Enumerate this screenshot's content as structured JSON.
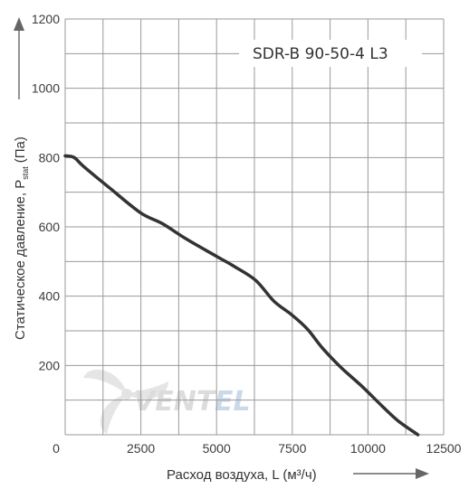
{
  "chart_data": {
    "type": "line",
    "title": "SDR-B 90-50-4 L3",
    "xlabel": "Расход воздуха, L (м³/ч)",
    "ylabel_main": "Статическое давление, P",
    "ylabel_sub": "stat",
    "ylabel_unit": "(Па)",
    "xlim": [
      0,
      12500
    ],
    "ylim": [
      0,
      1200
    ],
    "x_ticks": [
      "0",
      "2500",
      "5000",
      "7500",
      "10000",
      "12500"
    ],
    "y_ticks": [
      "200",
      "400",
      "600",
      "800",
      "1000",
      "1200"
    ],
    "grid": true,
    "series": [
      {
        "x": [
          0,
          300,
          600,
          1500,
          2500,
          3200,
          4000,
          5000,
          5600,
          6300,
          6900,
          7500,
          8000,
          8500,
          9100,
          9800,
          10500,
          11000,
          11650
        ],
        "y": [
          805,
          800,
          775,
          710,
          640,
          610,
          565,
          515,
          485,
          445,
          385,
          345,
          305,
          250,
          195,
          140,
          80,
          40,
          0
        ]
      }
    ]
  },
  "watermark": {
    "brand_part1": "VENT",
    "brand_part2": "EL",
    "color1": "#d9d9d9",
    "color2": "#c5d5e8"
  },
  "colors": {
    "grid": "#9a9a9a",
    "curve": "#333333",
    "axis_arrow": "#666666"
  }
}
